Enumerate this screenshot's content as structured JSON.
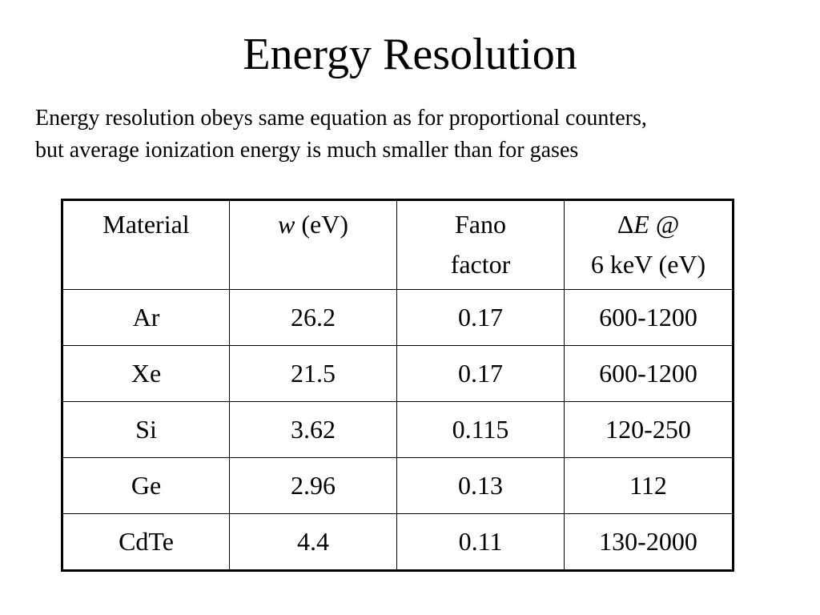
{
  "slide": {
    "title": "Energy Resolution",
    "intro_lines": [
      "Energy resolution obeys same equation as for proportional counters,",
      "but average ionization energy is much smaller than for gases"
    ]
  },
  "table": {
    "headers": {
      "material": "Material",
      "w_symbol": "w",
      "w_unit": "(eV)",
      "fano_line1": "Fano",
      "fano_line2": "factor",
      "de_delta": "Δ",
      "de_symbol": "E",
      "de_at": "@",
      "de_line2": "6 keV (eV)"
    },
    "rows": [
      {
        "material": "Ar",
        "w": "26.2",
        "fano": "0.17",
        "de": "600-1200"
      },
      {
        "material": "Xe",
        "w": "21.5",
        "fano": "0.17",
        "de": "600-1200"
      },
      {
        "material": "Si",
        "w": "3.62",
        "fano": "0.115",
        "de": "120-250"
      },
      {
        "material": "Ge",
        "w": "2.96",
        "fano": "0.13",
        "de": "112"
      },
      {
        "material": "CdTe",
        "w": "4.4",
        "fano": "0.11",
        "de": "130-2000"
      }
    ]
  }
}
